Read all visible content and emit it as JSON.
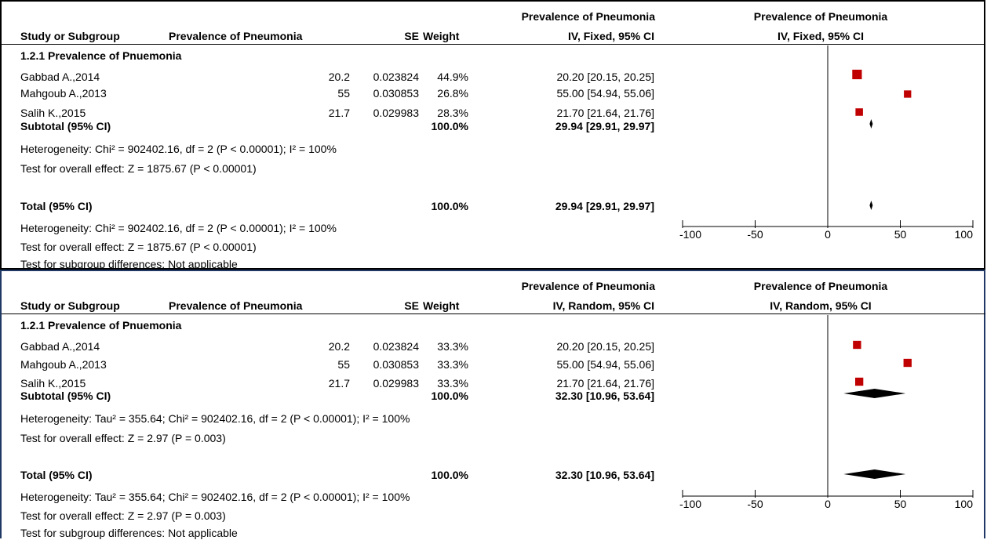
{
  "headers": {
    "study": "Study or Subgroup",
    "prevalence": "Prevalence of Pneumonia",
    "se": "SE",
    "weight": "Weight",
    "effect_group": "Prevalence of Pneumonia",
    "plot_group": "Prevalence of Pneumonia"
  },
  "panels": [
    {
      "method": "IV, Fixed, 95% CI",
      "subgroup_title": "1.2.1 Prevalence of Pnuemonia",
      "studies": [
        {
          "name": "Gabbad A.,2014",
          "prevalence": "20.2",
          "se": "0.023824",
          "weight": "44.9%",
          "ci": "20.20 [20.15, 20.25]"
        },
        {
          "name": "Mahgoub A.,2013",
          "prevalence": "55",
          "se": "0.030853",
          "weight": "26.8%",
          "ci": "55.00 [54.94, 55.06]"
        },
        {
          "name": "Salih K.,2015",
          "prevalence": "21.7",
          "se": "0.029983",
          "weight": "28.3%",
          "ci": "21.70 [21.64, 21.76]"
        }
      ],
      "subtotal": {
        "label": "Subtotal (95% CI)",
        "weight": "100.0%",
        "ci": "29.94 [29.91, 29.97]"
      },
      "heterogeneity": "Heterogeneity: Chi² = 902402.16, df = 2 (P < 0.00001); I² = 100%",
      "overall_effect": "Test for overall effect: Z = 1875.67 (P < 0.00001)",
      "total": {
        "label": "Total (95% CI)",
        "weight": "100.0%",
        "ci": "29.94 [29.91, 29.97]"
      },
      "total_heterogeneity": "Heterogeneity: Chi² = 902402.16, df = 2 (P < 0.00001); I² = 100%",
      "total_overall_effect": "Test for overall effect: Z = 1875.67 (P < 0.00001)",
      "subgroup_differences": "Test for subgroup differences: Not applicable"
    },
    {
      "method": "IV, Random, 95% CI",
      "subgroup_title": "1.2.1 Prevalence of Pnuemonia",
      "studies": [
        {
          "name": "Gabbad A.,2014",
          "prevalence": "20.2",
          "se": "0.023824",
          "weight": "33.3%",
          "ci": "20.20 [20.15, 20.25]"
        },
        {
          "name": "Mahgoub A.,2013",
          "prevalence": "55",
          "se": "0.030853",
          "weight": "33.3%",
          "ci": "55.00 [54.94, 55.06]"
        },
        {
          "name": "Salih K.,2015",
          "prevalence": "21.7",
          "se": "0.029983",
          "weight": "33.3%",
          "ci": "21.70 [21.64, 21.76]"
        }
      ],
      "subtotal": {
        "label": "Subtotal (95% CI)",
        "weight": "100.0%",
        "ci": "32.30 [10.96, 53.64]"
      },
      "heterogeneity": "Heterogeneity: Tau² = 355.64; Chi² = 902402.16, df = 2 (P < 0.00001); I² = 100%",
      "overall_effect": "Test for overall effect: Z = 2.97 (P = 0.003)",
      "total": {
        "label": "Total (95% CI)",
        "weight": "100.0%",
        "ci": "32.30 [10.96, 53.64]"
      },
      "total_heterogeneity": "Heterogeneity: Tau² = 355.64; Chi² = 902402.16, df = 2 (P < 0.00001); I² = 100%",
      "total_overall_effect": "Test for overall effect: Z = 2.97 (P = 0.003)",
      "subgroup_differences": "Test for subgroup differences: Not applicable"
    }
  ],
  "colors": {
    "square": "#c00000",
    "diamond": "#000000",
    "panel1_border": "#000000",
    "panel2_border": "#1f3864"
  },
  "chart_data": [
    {
      "type": "scatter",
      "title": "",
      "xlim": [
        -100,
        100
      ],
      "xticks": [
        -100,
        -50,
        0,
        50,
        100
      ],
      "tick_labels": [
        "-100",
        "-50",
        "0",
        "50",
        "100"
      ],
      "reference_line": 0,
      "points": [
        {
          "name": "Gabbad A.,2014",
          "estimate": 20.2,
          "lower": 20.15,
          "upper": 20.25,
          "weight": 44.9
        },
        {
          "name": "Mahgoub A.,2013",
          "estimate": 55.0,
          "lower": 54.94,
          "upper": 55.06,
          "weight": 26.8
        },
        {
          "name": "Salih K.,2015",
          "estimate": 21.7,
          "lower": 21.64,
          "upper": 21.76,
          "weight": 28.3
        }
      ],
      "diamonds": [
        {
          "row": "subtotal",
          "estimate": 29.94,
          "lower": 29.91,
          "upper": 29.97
        },
        {
          "row": "total",
          "estimate": 29.94,
          "lower": 29.91,
          "upper": 29.97
        }
      ]
    },
    {
      "type": "scatter",
      "title": "",
      "xlim": [
        -100,
        100
      ],
      "xticks": [
        -100,
        -50,
        0,
        50,
        100
      ],
      "tick_labels": [
        "-100",
        "-50",
        "0",
        "50",
        "100"
      ],
      "reference_line": 0,
      "points": [
        {
          "name": "Gabbad A.,2014",
          "estimate": 20.2,
          "lower": 20.15,
          "upper": 20.25,
          "weight": 33.3
        },
        {
          "name": "Mahgoub A.,2013",
          "estimate": 55.0,
          "lower": 54.94,
          "upper": 55.06,
          "weight": 33.3
        },
        {
          "name": "Salih K.,2015",
          "estimate": 21.7,
          "lower": 21.64,
          "upper": 21.76,
          "weight": 33.3
        }
      ],
      "diamonds": [
        {
          "row": "subtotal",
          "estimate": 32.3,
          "lower": 10.96,
          "upper": 53.64
        },
        {
          "row": "total",
          "estimate": 32.3,
          "lower": 10.96,
          "upper": 53.64
        }
      ]
    }
  ]
}
